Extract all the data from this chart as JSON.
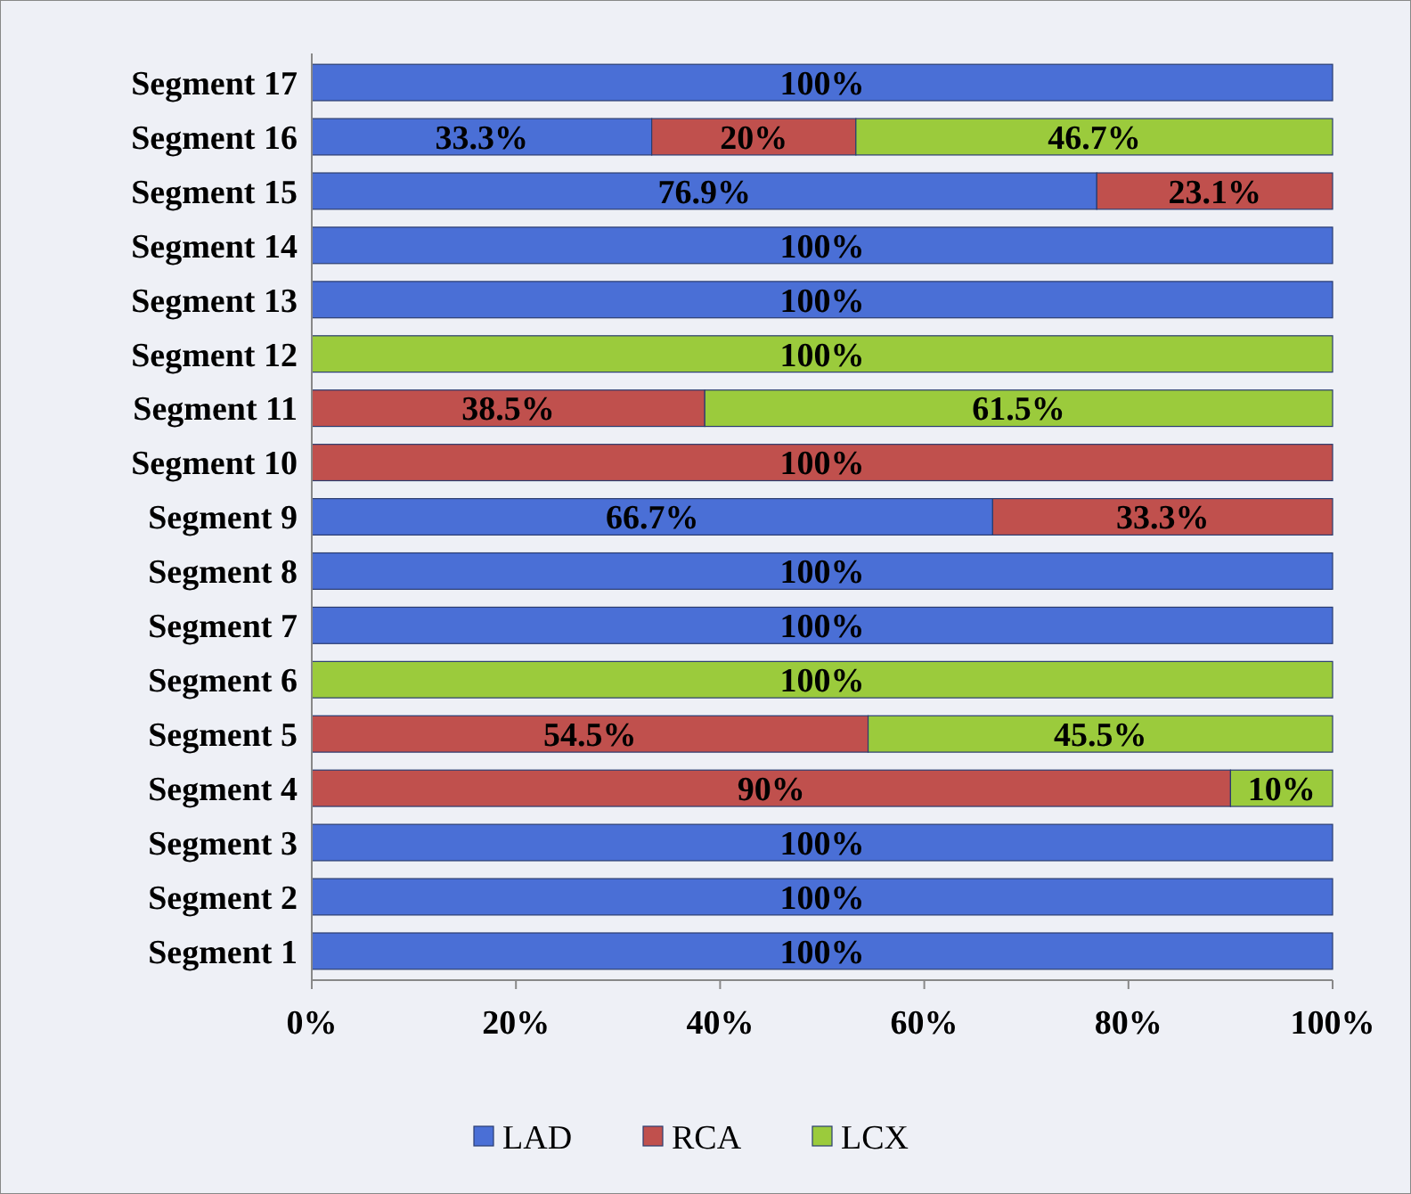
{
  "chart_data": {
    "type": "bar",
    "orientation": "horizontal",
    "stacked": true,
    "categories": [
      "Segment 17",
      "Segment 16",
      "Segment 15",
      "Segment 14",
      "Segment 13",
      "Segment 12",
      "Segment 11",
      "Segment 10",
      "Segment 9",
      "Segment 8",
      "Segment 7",
      "Segment 6",
      "Segment 5",
      "Segment 4",
      "Segment 3",
      "Segment 2",
      "Segment 1"
    ],
    "series": [
      {
        "name": "LAD",
        "color": "#4a6fd6",
        "values": [
          100,
          33.3,
          76.9,
          100,
          100,
          null,
          null,
          null,
          66.7,
          100,
          100,
          null,
          null,
          null,
          100,
          100,
          100
        ],
        "value_labels": [
          "100%",
          "33.3%",
          "76.9%",
          "100%",
          "100%",
          null,
          null,
          null,
          "66.7%",
          "100%",
          "100%",
          null,
          null,
          null,
          "100%",
          "100%",
          "100%"
        ]
      },
      {
        "name": "RCA",
        "color": "#c0504d",
        "values": [
          null,
          20,
          23.1,
          null,
          null,
          null,
          38.5,
          100,
          33.3,
          null,
          null,
          null,
          54.5,
          90,
          null,
          null,
          null
        ],
        "value_labels": [
          null,
          "20%",
          "23.1%",
          null,
          null,
          null,
          "38.5%",
          "100%",
          "33.3%",
          null,
          null,
          null,
          "54.5%",
          "90%",
          null,
          null,
          null
        ]
      },
      {
        "name": "LCX",
        "color": "#9bcb3c",
        "values": [
          null,
          46.7,
          null,
          null,
          null,
          100,
          61.5,
          null,
          null,
          null,
          null,
          100,
          45.5,
          10,
          null,
          null,
          null
        ],
        "value_labels": [
          null,
          "46.7%",
          null,
          null,
          null,
          "100%",
          "61.5%",
          null,
          null,
          null,
          null,
          "100%",
          "45.5%",
          "10%",
          null,
          null,
          null
        ]
      }
    ],
    "xlim": [
      0,
      100
    ],
    "xticks": [
      {
        "value": 0,
        "label": "0%"
      },
      {
        "value": 20,
        "label": "20%"
      },
      {
        "value": 40,
        "label": "40%"
      },
      {
        "value": 60,
        "label": "60%"
      },
      {
        "value": 80,
        "label": "80%"
      },
      {
        "value": 100,
        "label": "100%"
      }
    ],
    "grid": false,
    "legend": "bottom"
  }
}
